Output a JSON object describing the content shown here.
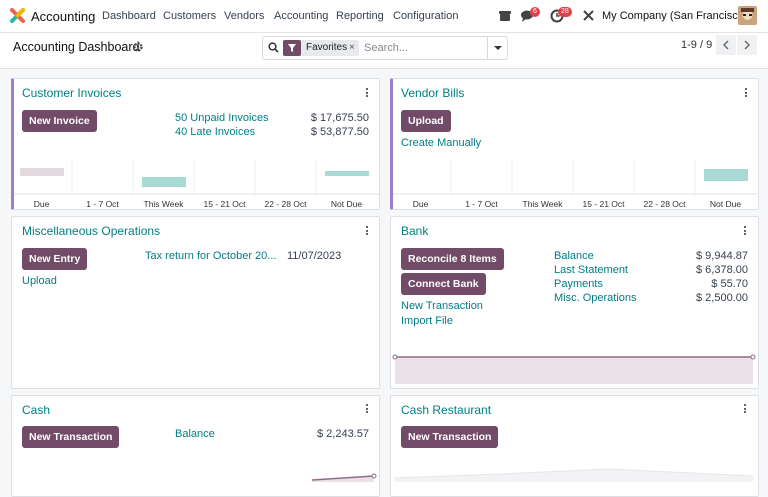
{
  "navbar": {
    "app_name": "Accounting",
    "menu": [
      "Dashboard",
      "Customers",
      "Vendors",
      "Accounting",
      "Reporting",
      "Configuration"
    ],
    "messages_badge": 6,
    "activities_badge": 28,
    "company": "My Company (San Francisco)"
  },
  "control_panel": {
    "title": "Accounting Dashboard",
    "facet": "Favorites",
    "search_placeholder": "Search...",
    "pager": "1-9 / 9"
  },
  "cards": [
    {
      "title": "Customer Invoices",
      "button": "New Invoice",
      "rows": [
        [
          "50 Unpaid Invoices",
          "$ 17,675.50"
        ],
        [
          "40 Late Invoices",
          "$ 53,877.50"
        ]
      ],
      "chart_labels": [
        "Due",
        "1 - 7 Oct",
        "This Week",
        "15 - 21 Oct",
        "22 - 28 Oct",
        "Not Due"
      ]
    },
    {
      "title": "Vendor Bills",
      "button": "Upload",
      "link": "Create Manually",
      "chart_labels": [
        "Due",
        "1 - 7 Oct",
        "This Week",
        "15 - 21 Oct",
        "22 - 28 Oct",
        "Not Due"
      ]
    },
    {
      "title": "Miscellaneous Operations",
      "button": "New Entry",
      "link": "Upload",
      "rows": [
        [
          "Tax return for October 20...",
          "11/07/2023"
        ]
      ]
    },
    {
      "title": "Bank",
      "buttons": [
        "Reconcile 8 Items",
        "Connect Bank"
      ],
      "links": [
        "New Transaction",
        "Import File"
      ],
      "rows": [
        [
          "Balance",
          "$ 9,944.87"
        ],
        [
          "Last Statement",
          "$ 6,378.00"
        ],
        [
          "Payments",
          "$ 55.70"
        ],
        [
          "Misc. Operations",
          "$ 2,500.00"
        ]
      ]
    },
    {
      "title": "Cash",
      "button": "New Transaction",
      "rows": [
        [
          "Balance",
          "$ 2,243.57"
        ]
      ]
    },
    {
      "title": "Cash Restaurant",
      "button": "New Transaction"
    }
  ]
}
